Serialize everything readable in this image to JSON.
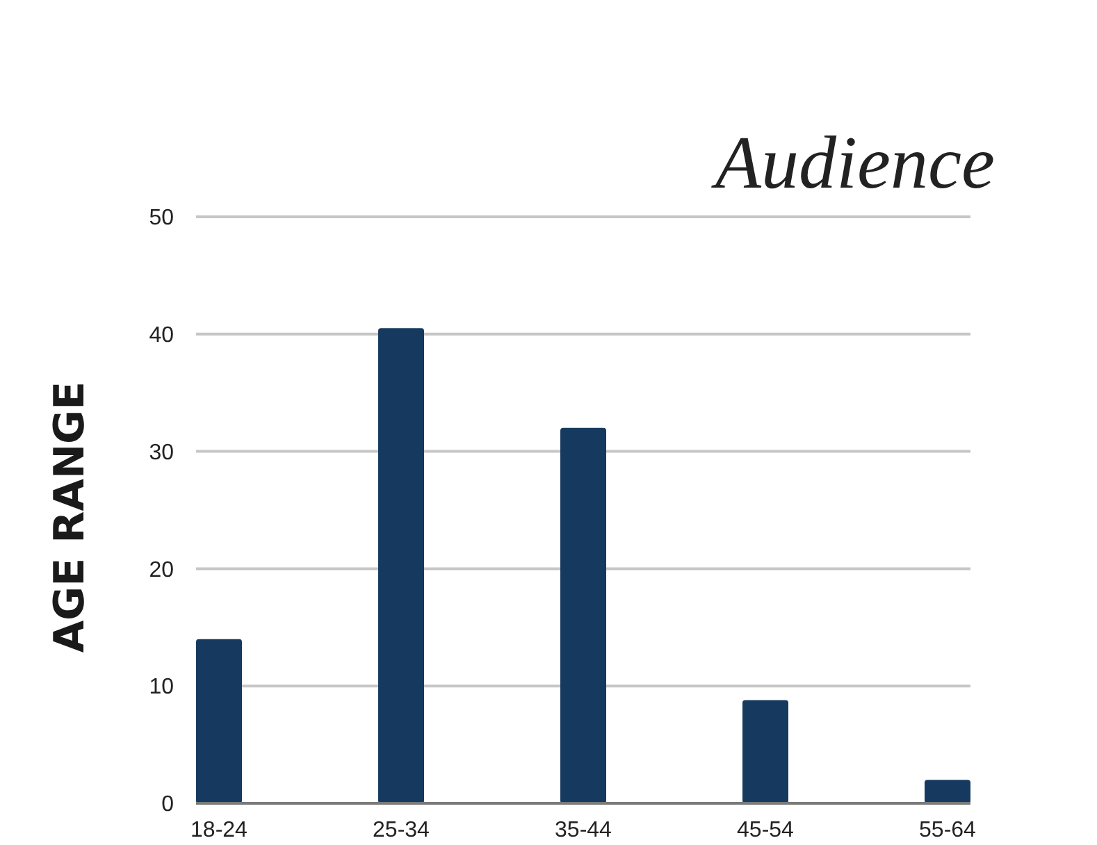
{
  "chart_data": {
    "type": "bar",
    "title": "Audience",
    "ylabel": "AGE RANGE",
    "categories": [
      "18-24",
      "25-34",
      "35-44",
      "45-54",
      "55-64"
    ],
    "values": [
      14,
      40.5,
      32,
      8.8,
      2
    ],
    "color": "#163a5f",
    "ylim": [
      0,
      50
    ],
    "yticks": [
      0,
      10,
      20,
      30,
      40,
      50
    ],
    "grid": "y"
  }
}
